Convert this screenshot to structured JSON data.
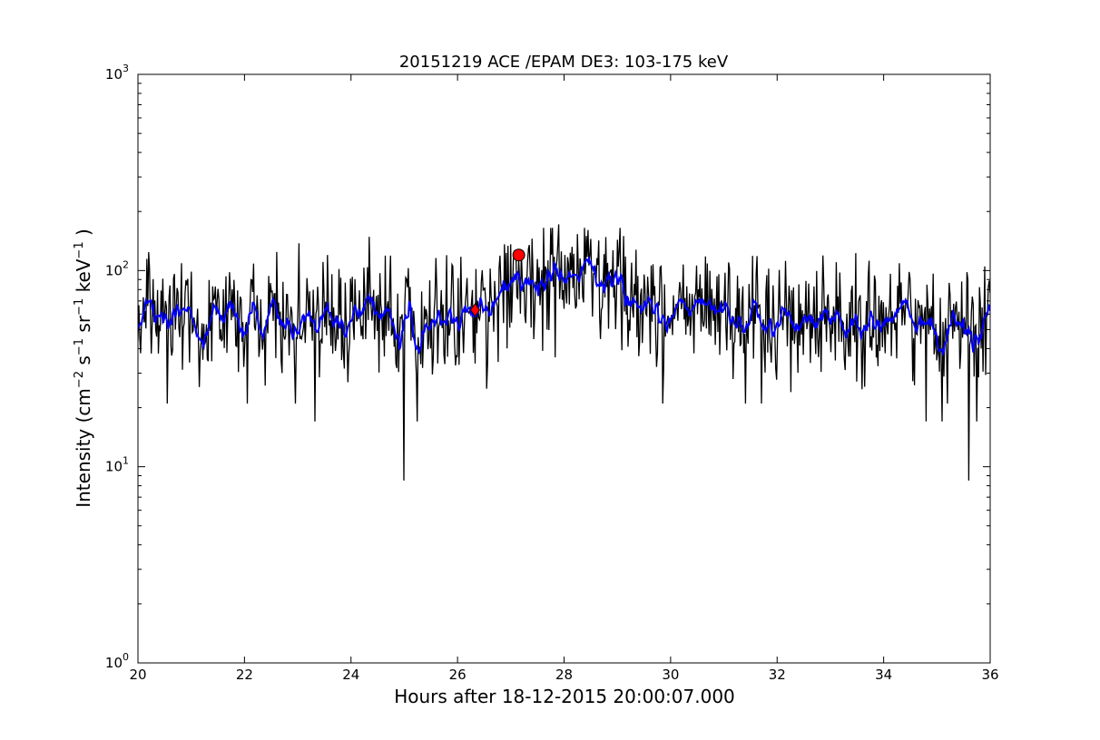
{
  "chart_data": {
    "type": "line",
    "title": "20151219 ACE /EPAM DE3: 103-175 keV",
    "xlabel": "Hours after 18-12-2015 20:00:07.000",
    "ylabel": {
      "prefix": "Intensity (cm",
      "exp1": "−2",
      "s": " s",
      "exp2": "−1",
      "sr": " sr",
      "exp3": "−1",
      "kev": " keV",
      "exp4": "−1",
      "suffix": " )"
    },
    "xlim": [
      20,
      36
    ],
    "ylim": [
      1,
      1000
    ],
    "yscale": "log",
    "grid": false,
    "x_ticks": [
      20,
      22,
      24,
      26,
      28,
      30,
      32,
      34,
      36
    ],
    "x_tick_labels": [
      "20",
      "22",
      "24",
      "26",
      "28",
      "30",
      "32",
      "34",
      "36"
    ],
    "y_ticks": [
      {
        "value": 1,
        "base": "10",
        "exp": "0"
      },
      {
        "value": 10,
        "base": "10",
        "exp": "1"
      },
      {
        "value": 100,
        "base": "10",
        "exp": "2"
      },
      {
        "value": 1000,
        "base": "10",
        "exp": "3"
      }
    ],
    "series": [
      {
        "role": "raw intensity",
        "color": "#000000",
        "x_start": 20.0,
        "x_step": 0.0167,
        "baseline_segments": [
          [
            20,
            57
          ],
          [
            26.3,
            58
          ],
          [
            26.6,
            72
          ],
          [
            27.2,
            88
          ],
          [
            28.0,
            90
          ],
          [
            28.8,
            80
          ],
          [
            29.5,
            67
          ],
          [
            30.5,
            62
          ],
          [
            32,
            58
          ],
          [
            34,
            56
          ],
          [
            36,
            55
          ]
        ],
        "noise_sigma_log10": 0.14,
        "spikes": [
          {
            "x": 25.0,
            "y": 8.5
          },
          {
            "x": 35.6,
            "y": 8.5
          },
          {
            "x": 23.33,
            "y": 17
          },
          {
            "x": 25.25,
            "y": 17
          },
          {
            "x": 34.8,
            "y": 17
          },
          {
            "x": 35.1,
            "y": 17
          },
          {
            "x": 35.75,
            "y": 17
          },
          {
            "x": 20.55,
            "y": 21
          },
          {
            "x": 22.05,
            "y": 21
          },
          {
            "x": 22.95,
            "y": 21
          },
          {
            "x": 26.55,
            "y": 25
          },
          {
            "x": 29.85,
            "y": 21
          },
          {
            "x": 31.4,
            "y": 21
          },
          {
            "x": 31.7,
            "y": 21
          },
          {
            "x": 35.2,
            "y": 21
          },
          {
            "x": 23.55,
            "y": 120
          },
          {
            "x": 27.9,
            "y": 172
          },
          {
            "x": 28.5,
            "y": 145
          },
          {
            "x": 27.35,
            "y": 135
          },
          {
            "x": 28.15,
            "y": 132
          },
          {
            "x": 30.65,
            "y": 118
          },
          {
            "x": 32.15,
            "y": 112
          },
          {
            "x": 35.9,
            "y": 105
          }
        ]
      },
      {
        "role": "smoothed intensity",
        "color": "#0000ff",
        "smoothing_window": 5
      }
    ],
    "markers": [
      {
        "shape": "diamond",
        "x": 26.33,
        "y": 63,
        "color": "#ff0000"
      },
      {
        "shape": "circle",
        "x": 27.15,
        "y": 120,
        "color": "#ff0000"
      }
    ]
  }
}
